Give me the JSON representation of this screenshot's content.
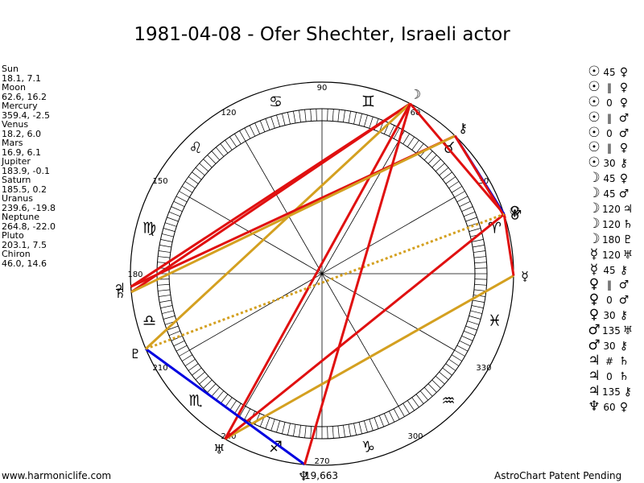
{
  "header": {
    "title": "1981-04-08 - Ofer Shechter, Israeli actor"
  },
  "planets": [
    {
      "name": "Sun",
      "values": "18.1, 7.1",
      "glyph": "☉",
      "lon": 18.1
    },
    {
      "name": "Moon",
      "values": "62.6, 16.2",
      "glyph": "☽",
      "lon": 62.6
    },
    {
      "name": "Mercury",
      "values": "359.4, -2.5",
      "glyph": "☿",
      "lon": 359.4
    },
    {
      "name": "Venus",
      "values": "18.2, 6.0",
      "glyph": "♀",
      "lon": 18.2
    },
    {
      "name": "Mars",
      "values": "16.9, 6.1",
      "glyph": "♂",
      "lon": 16.9
    },
    {
      "name": "Jupiter",
      "values": "183.9, -0.1",
      "glyph": "♃",
      "lon": 183.9
    },
    {
      "name": "Saturn",
      "values": "185.5, 0.2",
      "glyph": "♄",
      "lon": 185.5
    },
    {
      "name": "Uranus",
      "values": "239.6, -19.8",
      "glyph": "♅",
      "lon": 239.6
    },
    {
      "name": "Neptune",
      "values": "264.8, -22.0",
      "glyph": "♆",
      "lon": 264.8
    },
    {
      "name": "Pluto",
      "values": "203.1, 7.5",
      "glyph": "♇",
      "lon": 203.1
    },
    {
      "name": "Chiron",
      "values": "46.0, 14.6",
      "glyph": "⚷",
      "lon": 46.0
    }
  ],
  "aspects": [
    {
      "g1": "☉",
      "asp": "45",
      "g2": "♀"
    },
    {
      "g1": "☉",
      "asp": "‖",
      "g2": "♀"
    },
    {
      "g1": "☉",
      "asp": "0",
      "g2": "♀"
    },
    {
      "g1": "☉",
      "asp": "‖",
      "g2": "♂"
    },
    {
      "g1": "☉",
      "asp": "0",
      "g2": "♂"
    },
    {
      "g1": "☉",
      "asp": "‖",
      "g2": "♀"
    },
    {
      "g1": "☉",
      "asp": "30",
      "g2": "⚷"
    },
    {
      "g1": "☽",
      "asp": "45",
      "g2": "♀"
    },
    {
      "g1": "☽",
      "asp": "45",
      "g2": "♂"
    },
    {
      "g1": "☽",
      "asp": "120",
      "g2": "♃"
    },
    {
      "g1": "☽",
      "asp": "120",
      "g2": "♄"
    },
    {
      "g1": "☽",
      "asp": "180",
      "g2": "♇"
    },
    {
      "g1": "☿",
      "asp": "120",
      "g2": "♅"
    },
    {
      "g1": "☿",
      "asp": "45",
      "g2": "⚷"
    },
    {
      "g1": "♀",
      "asp": "‖",
      "g2": "♂"
    },
    {
      "g1": "♀",
      "asp": "0",
      "g2": "♂"
    },
    {
      "g1": "♀",
      "asp": "30",
      "g2": "⚷"
    },
    {
      "g1": "♂",
      "asp": "135",
      "g2": "♅"
    },
    {
      "g1": "♂",
      "asp": "30",
      "g2": "⚷"
    },
    {
      "g1": "♃",
      "asp": "#",
      "g2": "♄"
    },
    {
      "g1": "♃",
      "asp": "0",
      "g2": "♄"
    },
    {
      "g1": "♃",
      "asp": "135",
      "g2": "⚷"
    },
    {
      "g1": "♆",
      "asp": "60",
      "g2": "♀"
    }
  ],
  "wheel": {
    "degree_labels": [
      "90",
      "120",
      "150",
      "180",
      "210",
      "240",
      "270",
      "300",
      "330",
      "30",
      "60"
    ],
    "sign_glyphs": [
      "♈",
      "♉",
      "♊",
      "♋",
      "♌",
      "♍",
      "♎",
      "♏",
      "♐",
      "♑",
      "♒",
      "♓"
    ],
    "aspect_lines": [
      {
        "a": "Moon",
        "b": "Jupiter",
        "color": "#e01010",
        "style": "solid"
      },
      {
        "a": "Moon",
        "b": "Saturn",
        "color": "#e01010",
        "style": "solid"
      },
      {
        "a": "Moon",
        "b": "Pluto",
        "color": "#d4a020",
        "style": "solid"
      },
      {
        "a": "Moon",
        "b": "Uranus",
        "color": "#e01010",
        "style": "solid"
      },
      {
        "a": "Moon",
        "b": "Sun",
        "color": "#e01010",
        "style": "solid"
      },
      {
        "a": "Jupiter",
        "b": "Chiron",
        "color": "#e01010",
        "style": "solid"
      },
      {
        "a": "Saturn",
        "b": "Chiron",
        "color": "#d4a020",
        "style": "solid"
      },
      {
        "a": "Chiron",
        "b": "Sun",
        "color": "#0000e0",
        "style": "solid"
      },
      {
        "a": "Chiron",
        "b": "Mars",
        "color": "#e01010",
        "style": "solid"
      },
      {
        "a": "Mercury",
        "b": "Uranus",
        "color": "#d4a020",
        "style": "solid"
      },
      {
        "a": "Mercury",
        "b": "Sun",
        "color": "#e01010",
        "style": "solid"
      },
      {
        "a": "Uranus",
        "b": "Sun",
        "color": "#e01010",
        "style": "solid"
      },
      {
        "a": "Neptune",
        "b": "Pluto",
        "color": "#0000e0",
        "style": "solid"
      },
      {
        "a": "Pluto",
        "b": "Sun",
        "color": "#d4a020",
        "style": "dotted"
      },
      {
        "a": "Moon",
        "b": "Neptune",
        "color": "#e01010",
        "style": "solid"
      }
    ]
  },
  "footer": {
    "left": "www.harmoniclife.com",
    "center": "19,663",
    "right": "AstroChart Patent Pending"
  }
}
